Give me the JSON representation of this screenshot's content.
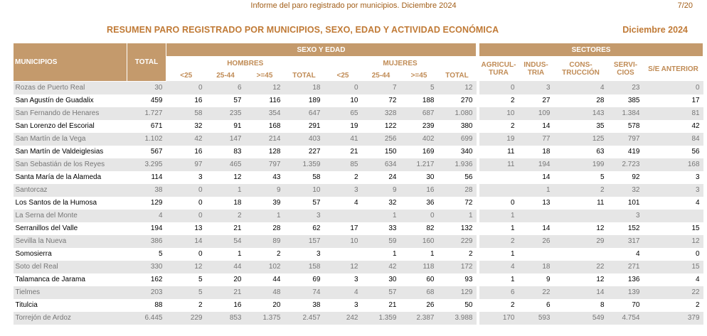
{
  "header": {
    "title": "Informe del paro registrado por municipios. Diciembre 2024",
    "page": "7/20"
  },
  "report": {
    "title": "RESUMEN PARO REGISTRADO POR MUNICIPIOS, SEXO, EDAD Y ACTIVIDAD ECONÓMICA",
    "date": "Diciembre 2024"
  },
  "table": {
    "col_municipios": "MUNICIPIOS",
    "col_total": "TOTAL",
    "group_sexo_edad": "SEXO Y EDAD",
    "group_sectores": "SECTORES",
    "hombres": "HOMBRES",
    "mujeres": "MUJERES",
    "age_lt25": "<25",
    "age_25_44": "25-44",
    "age_ge45": ">=45",
    "sub_total": "TOTAL",
    "agricultura": "AGRICUL-TURA",
    "industria": "INDUS-TRIA",
    "construccion": "CONS-TRUCCIÓN",
    "servicios": "SERVI-CIOS",
    "sin_empleo": "S/E ANTERIOR",
    "rows": [
      {
        "name": "Rozas de Puerto Real",
        "total": "30",
        "h25": "0",
        "h2544": "6",
        "h45": "12",
        "ht": "18",
        "m25": "0",
        "m2544": "7",
        "m45": "5",
        "mt": "12",
        "agr": "0",
        "ind": "3",
        "con": "4",
        "ser": "23",
        "sea": "0"
      },
      {
        "name": "San Agustín de Guadalix",
        "total": "459",
        "h25": "16",
        "h2544": "57",
        "h45": "116",
        "ht": "189",
        "m25": "10",
        "m2544": "72",
        "m45": "188",
        "mt": "270",
        "agr": "2",
        "ind": "27",
        "con": "28",
        "ser": "385",
        "sea": "17"
      },
      {
        "name": "San Fernando de Henares",
        "total": "1.727",
        "h25": "58",
        "h2544": "235",
        "h45": "354",
        "ht": "647",
        "m25": "65",
        "m2544": "328",
        "m45": "687",
        "mt": "1.080",
        "agr": "10",
        "ind": "109",
        "con": "143",
        "ser": "1.384",
        "sea": "81"
      },
      {
        "name": "San Lorenzo del Escorial",
        "total": "671",
        "h25": "32",
        "h2544": "91",
        "h45": "168",
        "ht": "291",
        "m25": "19",
        "m2544": "122",
        "m45": "239",
        "mt": "380",
        "agr": "2",
        "ind": "14",
        "con": "35",
        "ser": "578",
        "sea": "42"
      },
      {
        "name": "San Martín de la Vega",
        "total": "1.102",
        "h25": "42",
        "h2544": "147",
        "h45": "214",
        "ht": "403",
        "m25": "41",
        "m2544": "256",
        "m45": "402",
        "mt": "699",
        "agr": "19",
        "ind": "77",
        "con": "125",
        "ser": "797",
        "sea": "84"
      },
      {
        "name": "San Martín de Valdeiglesias",
        "total": "567",
        "h25": "16",
        "h2544": "83",
        "h45": "128",
        "ht": "227",
        "m25": "21",
        "m2544": "150",
        "m45": "169",
        "mt": "340",
        "agr": "11",
        "ind": "18",
        "con": "63",
        "ser": "419",
        "sea": "56"
      },
      {
        "name": "San Sebastián de los Reyes",
        "total": "3.295",
        "h25": "97",
        "h2544": "465",
        "h45": "797",
        "ht": "1.359",
        "m25": "85",
        "m2544": "634",
        "m45": "1.217",
        "mt": "1.936",
        "agr": "11",
        "ind": "194",
        "con": "199",
        "ser": "2.723",
        "sea": "168"
      },
      {
        "name": "Santa María de la Alameda",
        "total": "114",
        "h25": "3",
        "h2544": "12",
        "h45": "43",
        "ht": "58",
        "m25": "2",
        "m2544": "24",
        "m45": "30",
        "mt": "56",
        "agr": "",
        "ind": "14",
        "con": "5",
        "ser": "92",
        "sea": "3"
      },
      {
        "name": "Santorcaz",
        "total": "38",
        "h25": "0",
        "h2544": "1",
        "h45": "9",
        "ht": "10",
        "m25": "3",
        "m2544": "9",
        "m45": "16",
        "mt": "28",
        "agr": "",
        "ind": "1",
        "con": "2",
        "ser": "32",
        "sea": "3"
      },
      {
        "name": "Los Santos de la Humosa",
        "total": "129",
        "h25": "0",
        "h2544": "18",
        "h45": "39",
        "ht": "57",
        "m25": "4",
        "m2544": "32",
        "m45": "36",
        "mt": "72",
        "agr": "0",
        "ind": "13",
        "con": "11",
        "ser": "101",
        "sea": "4"
      },
      {
        "name": "La Serna del Monte",
        "total": "4",
        "h25": "0",
        "h2544": "2",
        "h45": "1",
        "ht": "3",
        "m25": "",
        "m2544": "1",
        "m45": "0",
        "mt": "1",
        "agr": "1",
        "ind": "",
        "con": "",
        "ser": "3",
        "sea": ""
      },
      {
        "name": "Serranillos del Valle",
        "total": "194",
        "h25": "13",
        "h2544": "21",
        "h45": "28",
        "ht": "62",
        "m25": "17",
        "m2544": "33",
        "m45": "82",
        "mt": "132",
        "agr": "1",
        "ind": "14",
        "con": "12",
        "ser": "152",
        "sea": "15"
      },
      {
        "name": "Sevilla la Nueva",
        "total": "386",
        "h25": "14",
        "h2544": "54",
        "h45": "89",
        "ht": "157",
        "m25": "10",
        "m2544": "59",
        "m45": "160",
        "mt": "229",
        "agr": "2",
        "ind": "26",
        "con": "29",
        "ser": "317",
        "sea": "12"
      },
      {
        "name": "Somosierra",
        "total": "5",
        "h25": "0",
        "h2544": "1",
        "h45": "2",
        "ht": "3",
        "m25": "",
        "m2544": "1",
        "m45": "1",
        "mt": "2",
        "agr": "1",
        "ind": "",
        "con": "",
        "ser": "4",
        "sea": "0"
      },
      {
        "name": "Soto del Real",
        "total": "330",
        "h25": "12",
        "h2544": "44",
        "h45": "102",
        "ht": "158",
        "m25": "12",
        "m2544": "42",
        "m45": "118",
        "mt": "172",
        "agr": "4",
        "ind": "18",
        "con": "22",
        "ser": "271",
        "sea": "15"
      },
      {
        "name": "Talamanca de Jarama",
        "total": "162",
        "h25": "5",
        "h2544": "20",
        "h45": "44",
        "ht": "69",
        "m25": "3",
        "m2544": "30",
        "m45": "60",
        "mt": "93",
        "agr": "1",
        "ind": "9",
        "con": "12",
        "ser": "136",
        "sea": "4"
      },
      {
        "name": "Tielmes",
        "total": "203",
        "h25": "5",
        "h2544": "21",
        "h45": "48",
        "ht": "74",
        "m25": "4",
        "m2544": "57",
        "m45": "68",
        "mt": "129",
        "agr": "6",
        "ind": "22",
        "con": "14",
        "ser": "139",
        "sea": "22"
      },
      {
        "name": "Titulcia",
        "total": "88",
        "h25": "2",
        "h2544": "16",
        "h45": "20",
        "ht": "38",
        "m25": "3",
        "m2544": "21",
        "m45": "26",
        "mt": "50",
        "agr": "2",
        "ind": "6",
        "con": "8",
        "ser": "70",
        "sea": "2"
      },
      {
        "name": "Torrejón de Ardoz",
        "total": "6.445",
        "h25": "229",
        "h2544": "853",
        "h45": "1.375",
        "ht": "2.457",
        "m25": "242",
        "m2544": "1.359",
        "m45": "2.387",
        "mt": "3.988",
        "agr": "170",
        "ind": "593",
        "con": "549",
        "ser": "4.754",
        "sea": "379"
      }
    ]
  },
  "colors": {
    "header_bg": "#c49a6c",
    "title_text": "#c07a36",
    "alt_row_bg": "#e6e6e6"
  }
}
